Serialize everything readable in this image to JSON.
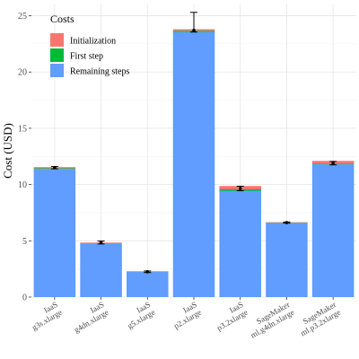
{
  "chart_data": {
    "type": "bar",
    "stacked": true,
    "categories": [
      [
        "IaaS",
        "g3s.xlarge"
      ],
      [
        "IaaS",
        "g4dn.xlarge"
      ],
      [
        "IaaS",
        "g5.xlarge"
      ],
      [
        "IaaS",
        "p2.xlarge"
      ],
      [
        "IaaS",
        "p3.2xlarge"
      ],
      [
        "SageMaker",
        "ml.g4dn.xlarge"
      ],
      [
        "SageMaker",
        "ml.p3.2xlarge"
      ]
    ],
    "series": [
      {
        "name": "Remaining steps",
        "color": "#619CFF",
        "values": [
          11.4,
          4.78,
          2.23,
          23.55,
          9.45,
          6.58,
          11.8
        ]
      },
      {
        "name": "First step",
        "color": "#00BA38",
        "values": [
          0.05,
          0.02,
          0.02,
          0.12,
          0.12,
          0.03,
          0.05
        ]
      },
      {
        "name": "Initialization",
        "color": "#F8766D",
        "values": [
          0.1,
          0.05,
          0.05,
          0.13,
          0.3,
          0.04,
          0.25
        ]
      }
    ],
    "error_bars": [
      {
        "center": 11.5,
        "low": 11.4,
        "high": 11.6
      },
      {
        "center": 4.85,
        "low": 4.72,
        "high": 4.98
      },
      {
        "center": 2.25,
        "low": 2.18,
        "high": 2.32
      },
      {
        "center": 23.7,
        "low": 23.55,
        "high": 25.3
      },
      {
        "center": 9.65,
        "low": 9.45,
        "high": 9.85
      },
      {
        "center": 6.62,
        "low": 6.57,
        "high": 6.67
      },
      {
        "center": 11.9,
        "low": 11.75,
        "high": 12.05
      }
    ],
    "ylabel": "Cost (USD)",
    "xlabel": "",
    "ylim": [
      0,
      26
    ],
    "yticks": [
      0,
      5,
      10,
      15,
      20,
      25
    ],
    "grid": true,
    "legend": {
      "title": "Costs",
      "placement": "top-left",
      "entries": [
        {
          "name": "Initialization",
          "color": "#F8766D"
        },
        {
          "name": "First step",
          "color": "#00BA38"
        },
        {
          "name": "Remaining steps",
          "color": "#619CFF"
        }
      ]
    }
  }
}
